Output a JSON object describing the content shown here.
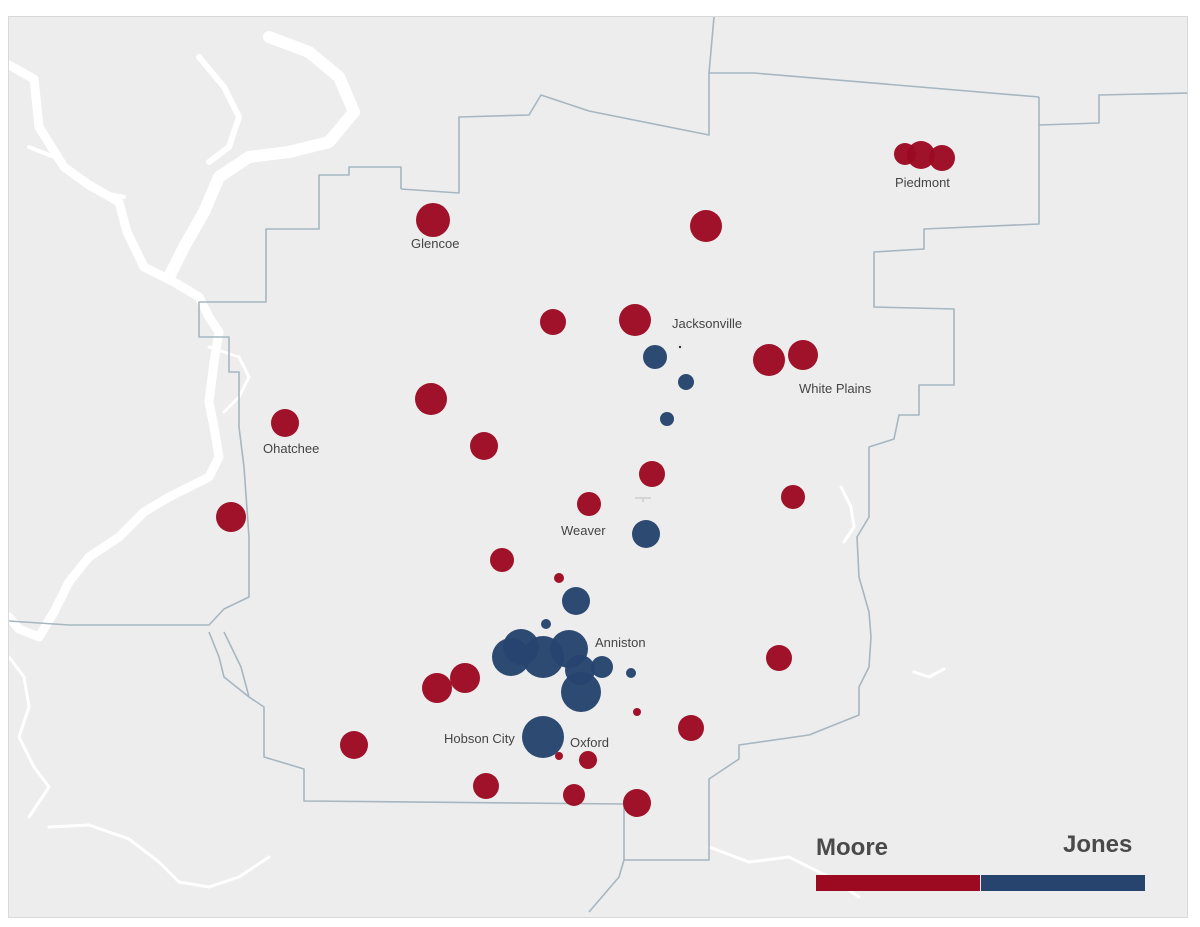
{
  "colors": {
    "moore": "#9c0a22",
    "jones": "#26446e",
    "land": "#ededed",
    "water": "#ffffff",
    "boundary": "#a7b6c0"
  },
  "legend": {
    "left_label": "Moore",
    "right_label": "Jones"
  },
  "cities": {
    "piedmont": "Piedmont",
    "glencoe": "Glencoe",
    "jacksonville": "Jacksonville",
    "white_plains": "White Plains",
    "ohatchee": "Ohatchee",
    "weaver": "Weaver",
    "anniston": "Anniston",
    "hobson_city": "Hobson City",
    "oxford": "Oxford"
  }
}
